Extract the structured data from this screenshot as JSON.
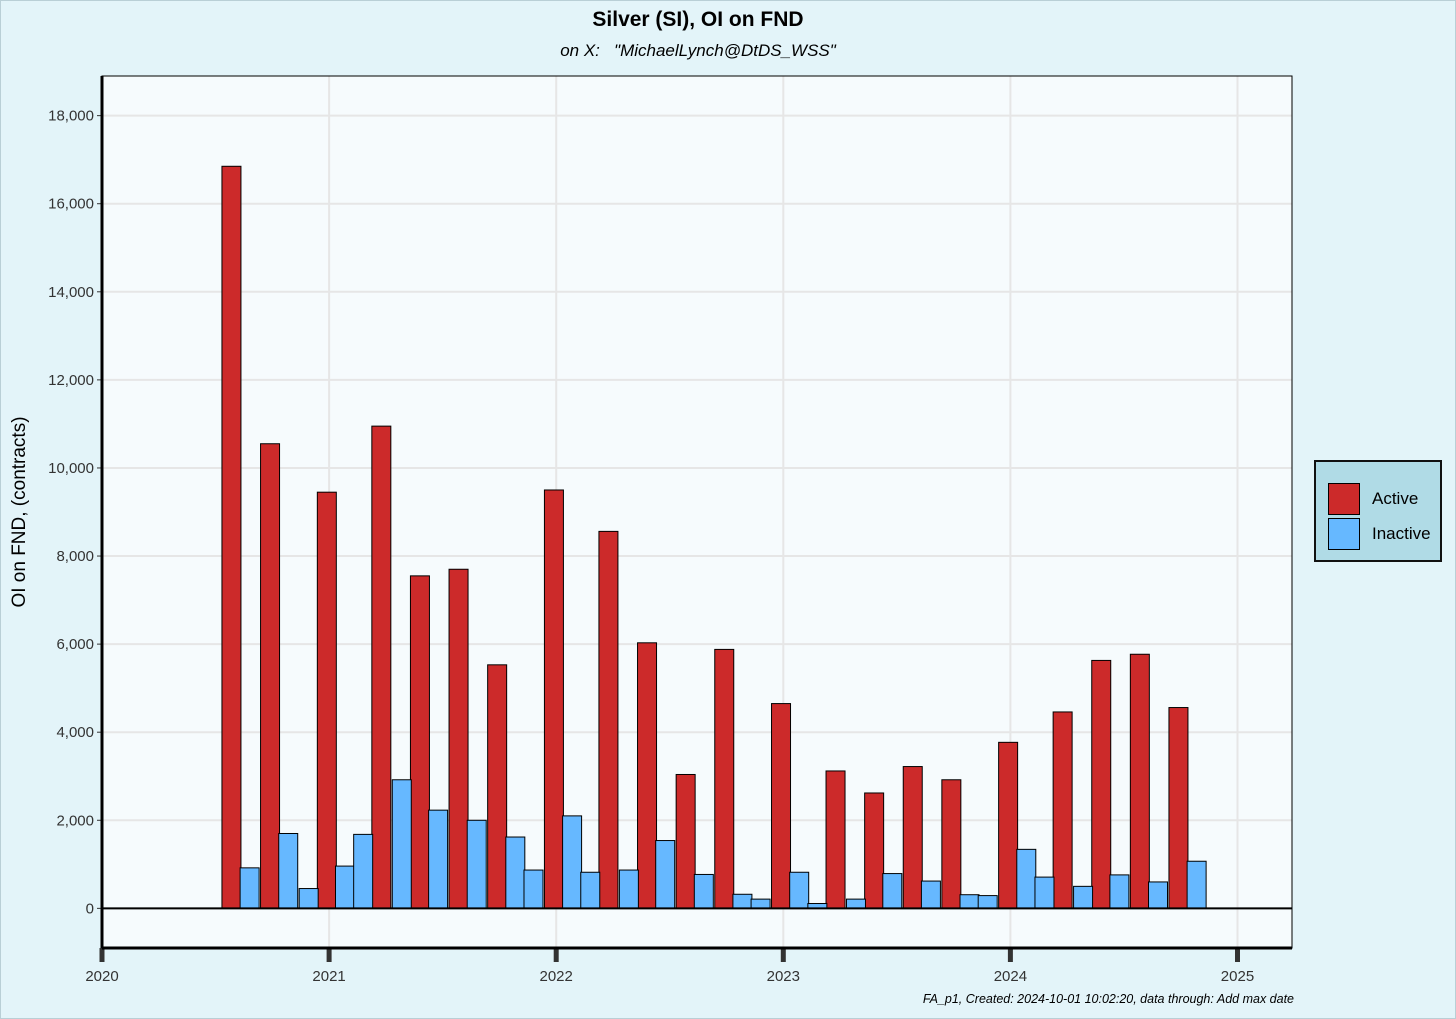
{
  "colors": {
    "active": "#cc2a2a",
    "inactive": "#66b8ff",
    "panel": "#f6fbfd",
    "grid": "#e6e6e6"
  },
  "chart_data": {
    "type": "bar",
    "title": "Silver (SI), OI on FND",
    "subtitle": "on X:   \"MichaelLynch@DtDS_WSS\"",
    "xlabel": "",
    "ylabel": "OI on FND, (contracts)",
    "ylim": [
      -900,
      18900
    ],
    "xlim": [
      2020.0,
      2025.24
    ],
    "yticks": [
      0,
      2000,
      4000,
      6000,
      8000,
      10000,
      12000,
      14000,
      16000,
      18000
    ],
    "ytick_labels": [
      "0",
      "2,000",
      "4,000",
      "6,000",
      "8,000",
      "10,000",
      "12,000",
      "14,000",
      "16,000",
      "18,000"
    ],
    "xticks": [
      2020,
      2021,
      2022,
      2023,
      2024,
      2025
    ],
    "xtick_labels": [
      "2020",
      "2021",
      "2022",
      "2023",
      "2024",
      "2025"
    ],
    "grid": true,
    "legend_position": "right",
    "series": [
      {
        "name": "Active",
        "x": [
          2020.57,
          2020.74,
          2020.99,
          2021.23,
          2021.4,
          2021.57,
          2021.74,
          2021.99,
          2022.23,
          2022.4,
          2022.57,
          2022.74,
          2022.99,
          2023.23,
          2023.4,
          2023.57,
          2023.74,
          2023.99,
          2024.23,
          2024.4,
          2024.57,
          2024.74
        ],
        "values": [
          16850,
          10550,
          9450,
          10950,
          7550,
          7700,
          5530,
          9500,
          8560,
          6030,
          3040,
          5880,
          4650,
          3120,
          2620,
          3220,
          2920,
          3770,
          4460,
          5630,
          5770,
          4560
        ]
      },
      {
        "name": "Inactive",
        "x": [
          2020.65,
          2020.82,
          2020.91,
          2021.07,
          2021.15,
          2021.32,
          2021.48,
          2021.65,
          2021.82,
          2021.9,
          2022.07,
          2022.15,
          2022.32,
          2022.48,
          2022.65,
          2022.82,
          2022.9,
          2023.07,
          2023.15,
          2023.32,
          2023.48,
          2023.65,
          2023.82,
          2023.9,
          2024.07,
          2024.15,
          2024.32,
          2024.48,
          2024.65,
          2024.82
        ],
        "values": [
          920,
          1700,
          450,
          960,
          1680,
          2920,
          2230,
          2000,
          1620,
          870,
          2100,
          820,
          870,
          1540,
          770,
          320,
          210,
          820,
          110,
          210,
          790,
          620,
          310,
          290,
          1340,
          710,
          500,
          760,
          600,
          1070
        ]
      }
    ],
    "caption": "FA_p1, Created: 2024-10-01 10:02:20, data through:  Add max date"
  }
}
